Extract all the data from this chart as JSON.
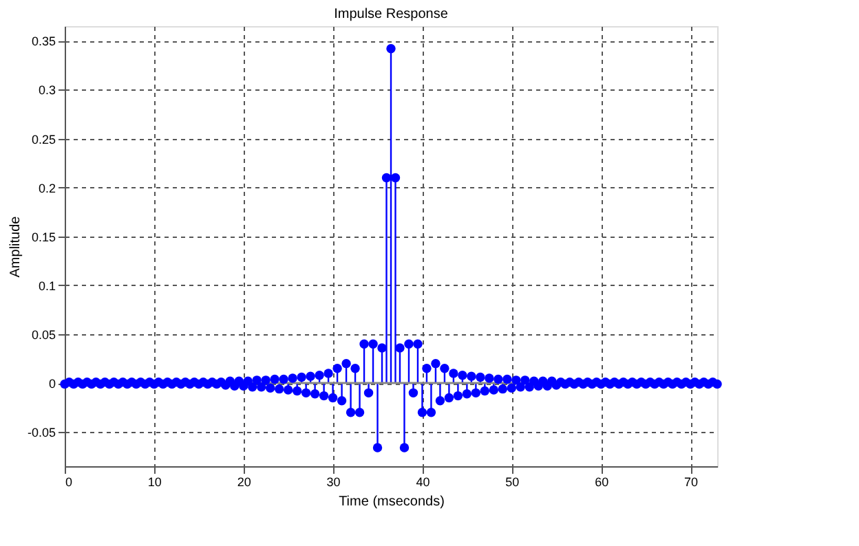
{
  "chart_data": {
    "type": "lollipop",
    "title": "Impulse Response",
    "xlabel": "Time (mseconds)",
    "ylabel": "Amplitude",
    "xlim": [
      0,
      73
    ],
    "xticks": [
      0,
      10,
      20,
      30,
      40,
      50,
      60,
      70
    ],
    "ylim": [
      -0.085,
      0.365
    ],
    "yticks": [
      -0.05,
      0,
      0.05,
      0.1,
      0.15,
      0.2,
      0.25,
      0.3,
      0.35
    ],
    "grid": true,
    "marker": "circle",
    "x": [
      0,
      0.5,
      1,
      1.5,
      2,
      2.5,
      3,
      3.5,
      4,
      4.5,
      5,
      5.5,
      6,
      6.5,
      7,
      7.5,
      8,
      8.5,
      9,
      9.5,
      10,
      10.5,
      11,
      11.5,
      12,
      12.5,
      13,
      13.5,
      14,
      14.5,
      15,
      15.5,
      16,
      16.5,
      17,
      17.5,
      18,
      18.5,
      19,
      19.5,
      20,
      20.5,
      21,
      21.5,
      22,
      22.5,
      23,
      23.5,
      24,
      24.5,
      25,
      25.5,
      26,
      26.5,
      27,
      27.5,
      28,
      28.5,
      29,
      29.5,
      30,
      30.5,
      31,
      31.5,
      32,
      32.5,
      33,
      33.5,
      34,
      34.5,
      35,
      35.5,
      36,
      36.5,
      37,
      37.5,
      38,
      38.5,
      39,
      39.5,
      40,
      40.5,
      41,
      41.5,
      42,
      42.5,
      43,
      43.5,
      44,
      44.5,
      45,
      45.5,
      46,
      46.5,
      47,
      47.5,
      48,
      48.5,
      49,
      49.5,
      50,
      50.5,
      51,
      51.5,
      52,
      52.5,
      53,
      53.5,
      54,
      54.5,
      55,
      55.5,
      56,
      56.5,
      57,
      57.5,
      58,
      58.5,
      59,
      59.5,
      60,
      60.5,
      61,
      61.5,
      62,
      62.5,
      63,
      63.5,
      64,
      64.5,
      65,
      65.5,
      66,
      66.5,
      67,
      67.5,
      68,
      68.5,
      69,
      69.5,
      70,
      70.5,
      71,
      71.5,
      72,
      72.5,
      73
    ],
    "series": [
      {
        "color": "#0000ff",
        "values": [
          -0.001,
          0.001,
          -0.001,
          0.001,
          -0.001,
          0.001,
          -0.001,
          0.001,
          -0.001,
          0.001,
          -0.001,
          0.001,
          -0.001,
          0.001,
          -0.001,
          0.001,
          -0.001,
          0.001,
          -0.001,
          0.001,
          -0.001,
          0.001,
          -0.001,
          0.001,
          -0.001,
          0.001,
          -0.001,
          0.001,
          -0.001,
          0.001,
          -0.001,
          0.001,
          -0.001,
          0.001,
          -0.001,
          0.001,
          -0.002,
          0.002,
          -0.003,
          0.002,
          -0.003,
          0.002,
          -0.004,
          0.003,
          -0.004,
          0.003,
          -0.005,
          0.004,
          -0.006,
          0.004,
          -0.007,
          0.005,
          -0.008,
          0.006,
          -0.01,
          0.007,
          -0.011,
          0.008,
          -0.013,
          0.01,
          -0.015,
          0.015,
          -0.018,
          0.02,
          -0.03,
          0.015,
          -0.03,
          0.04,
          -0.01,
          0.04,
          -0.066,
          0.036,
          0.21,
          0.342,
          0.21,
          0.036,
          -0.066,
          0.04,
          -0.01,
          0.04,
          -0.03,
          0.015,
          -0.03,
          0.02,
          -0.018,
          0.015,
          -0.015,
          0.01,
          -0.013,
          0.008,
          -0.011,
          0.007,
          -0.01,
          0.006,
          -0.008,
          0.005,
          -0.007,
          0.004,
          -0.006,
          0.004,
          -0.005,
          0.003,
          -0.004,
          0.003,
          -0.004,
          0.002,
          -0.003,
          0.002,
          -0.003,
          0.002,
          -0.002,
          0.001,
          -0.001,
          0.001,
          -0.001,
          0.001,
          -0.001,
          0.001,
          -0.001,
          0.001,
          -0.001,
          0.001,
          -0.001,
          0.001,
          -0.001,
          0.001,
          -0.001,
          0.001,
          -0.001,
          0.001,
          -0.001,
          0.001,
          -0.001,
          0.001,
          -0.001,
          0.001,
          -0.001,
          0.001,
          -0.001,
          0.001,
          -0.001,
          0.001,
          -0.001,
          0.001,
          -0.001,
          0.001,
          -0.001
        ]
      }
    ]
  }
}
